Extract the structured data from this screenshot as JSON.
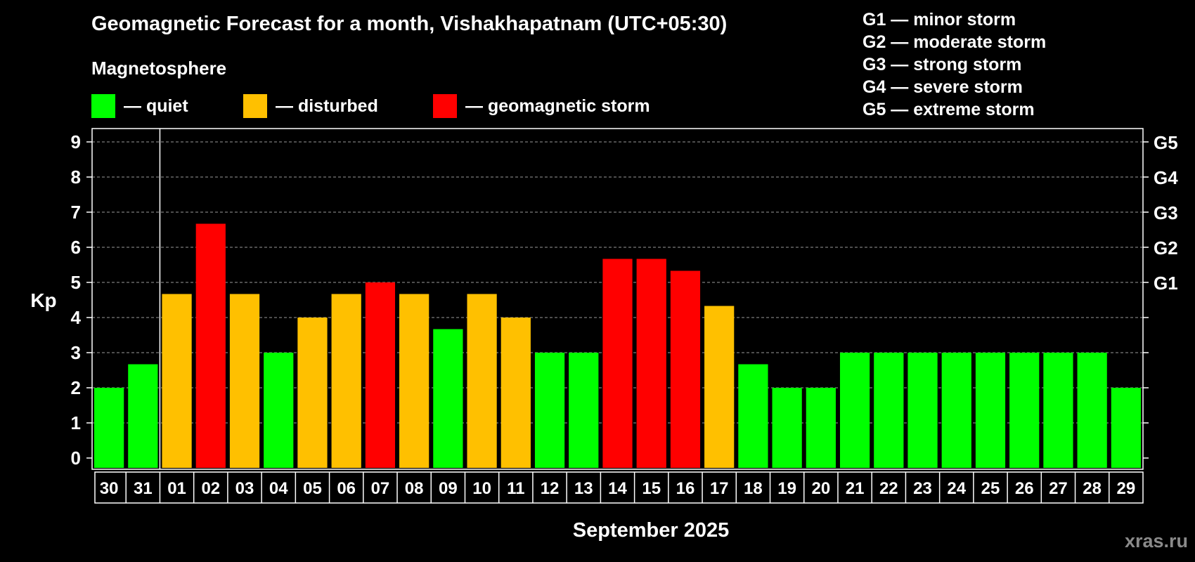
{
  "title": "Geomagnetic Forecast for a month, Vishakhapatnam (UTC+05:30)",
  "subtitle": "Magnetosphere",
  "legend": [
    {
      "label": "— quiet",
      "color": "#00ff00"
    },
    {
      "label": "— disturbed",
      "color": "#ffc000"
    },
    {
      "label": "— geomagnetic storm",
      "color": "#ff0000"
    }
  ],
  "g_scale_legend": [
    "G1 — minor storm",
    "G2 — moderate storm",
    "G3 — strong storm",
    "G4 — severe storm",
    "G5 — extreme storm"
  ],
  "watermark": "xras.ru",
  "chart_data": {
    "type": "bar",
    "title": "Geomagnetic Forecast for a month, Vishakhapatnam (UTC+05:30)",
    "xlabel": "September 2025",
    "ylabel": "Kp",
    "ylim": [
      0,
      9
    ],
    "yticks": [
      "0",
      "1",
      "2",
      "3",
      "4",
      "5",
      "6",
      "7",
      "8",
      "9"
    ],
    "right_axis_labels": [
      {
        "kp": 5,
        "label": "G1"
      },
      {
        "kp": 6,
        "label": "G2"
      },
      {
        "kp": 7,
        "label": "G3"
      },
      {
        "kp": 8,
        "label": "G4"
      },
      {
        "kp": 9,
        "label": "G5"
      }
    ],
    "categories": [
      "30",
      "31",
      "01",
      "02",
      "03",
      "04",
      "05",
      "06",
      "07",
      "08",
      "09",
      "10",
      "11",
      "12",
      "13",
      "14",
      "15",
      "16",
      "17",
      "18",
      "19",
      "20",
      "21",
      "22",
      "23",
      "24",
      "25",
      "26",
      "27",
      "28",
      "29"
    ],
    "values": [
      2,
      2.67,
      4.67,
      6.67,
      4.67,
      3,
      4,
      4.67,
      5,
      4.67,
      3.67,
      4.67,
      4,
      3,
      3,
      5.67,
      5.67,
      5.33,
      4.33,
      2.67,
      2,
      2,
      3,
      3,
      3,
      3,
      3,
      3,
      3,
      3,
      2
    ],
    "levels": [
      "quiet",
      "quiet",
      "disturbed",
      "storm",
      "disturbed",
      "quiet",
      "disturbed",
      "disturbed",
      "storm",
      "disturbed",
      "quiet",
      "disturbed",
      "disturbed",
      "quiet",
      "quiet",
      "storm",
      "storm",
      "storm",
      "disturbed",
      "quiet",
      "quiet",
      "quiet",
      "quiet",
      "quiet",
      "quiet",
      "quiet",
      "quiet",
      "quiet",
      "quiet",
      "quiet",
      "quiet"
    ],
    "level_colors": {
      "quiet": "#00ff00",
      "disturbed": "#ffc000",
      "storm": "#ff0000"
    },
    "grid": true,
    "month_separator_after_index": 1
  }
}
